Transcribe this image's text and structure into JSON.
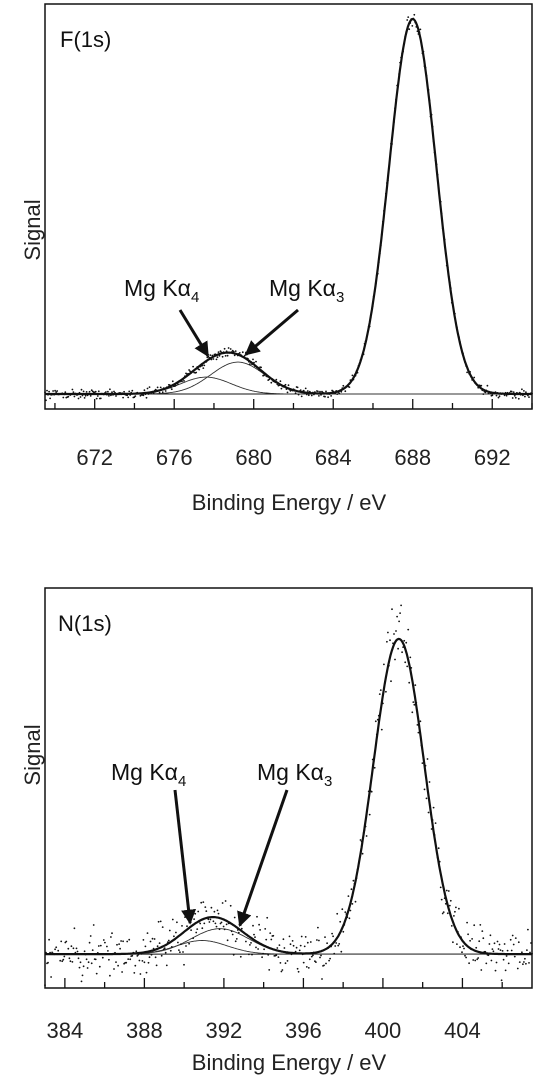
{
  "chart_data": [
    {
      "type": "line",
      "panel_label": "F(1s)",
      "xlabel": "Binding Energy / eV",
      "ylabel": "Signal",
      "xlim": [
        669.5,
        694
      ],
      "ylim": [
        -0.04,
        1.04
      ],
      "xticks": [
        672,
        676,
        680,
        684,
        688,
        692
      ],
      "baseline": 0,
      "components": [
        {
          "role": "main",
          "center": 688.0,
          "amplitude": 1.0,
          "fwhm": 2.8
        },
        {
          "role": "Mg Ka3",
          "center": 679.2,
          "amplitude": 0.085,
          "fwhm": 3.2
        },
        {
          "role": "Mg Ka4",
          "center": 677.6,
          "amplitude": 0.045,
          "fwhm": 3.0
        }
      ],
      "noise": 0.006,
      "annotations": [
        {
          "text": "Mg Kα",
          "sub": "4",
          "target": 677.7
        },
        {
          "text": "Mg Kα",
          "sub": "3",
          "target": 679.6
        }
      ]
    },
    {
      "type": "line",
      "panel_label": "N(1s)",
      "xlabel": "Binding Energy / eV",
      "ylabel": "Signal",
      "xlim": [
        383,
        407.5
      ],
      "ylim": [
        -0.1,
        1.08
      ],
      "xticks": [
        384,
        388,
        392,
        396,
        400,
        404
      ],
      "baseline": 0,
      "components": [
        {
          "role": "main",
          "center": 400.8,
          "amplitude": 0.93,
          "fwhm": 3.0
        },
        {
          "role": "Mg Ka3",
          "center": 391.8,
          "amplitude": 0.075,
          "fwhm": 3.4
        },
        {
          "role": "Mg Ka4",
          "center": 390.9,
          "amplitude": 0.04,
          "fwhm": 3.0
        }
      ],
      "noise": 0.035,
      "annotations": [
        {
          "text": "Mg Kα",
          "sub": "4",
          "target": 390.3
        },
        {
          "text": "Mg Kα",
          "sub": "3",
          "target": 392.8
        }
      ]
    }
  ]
}
